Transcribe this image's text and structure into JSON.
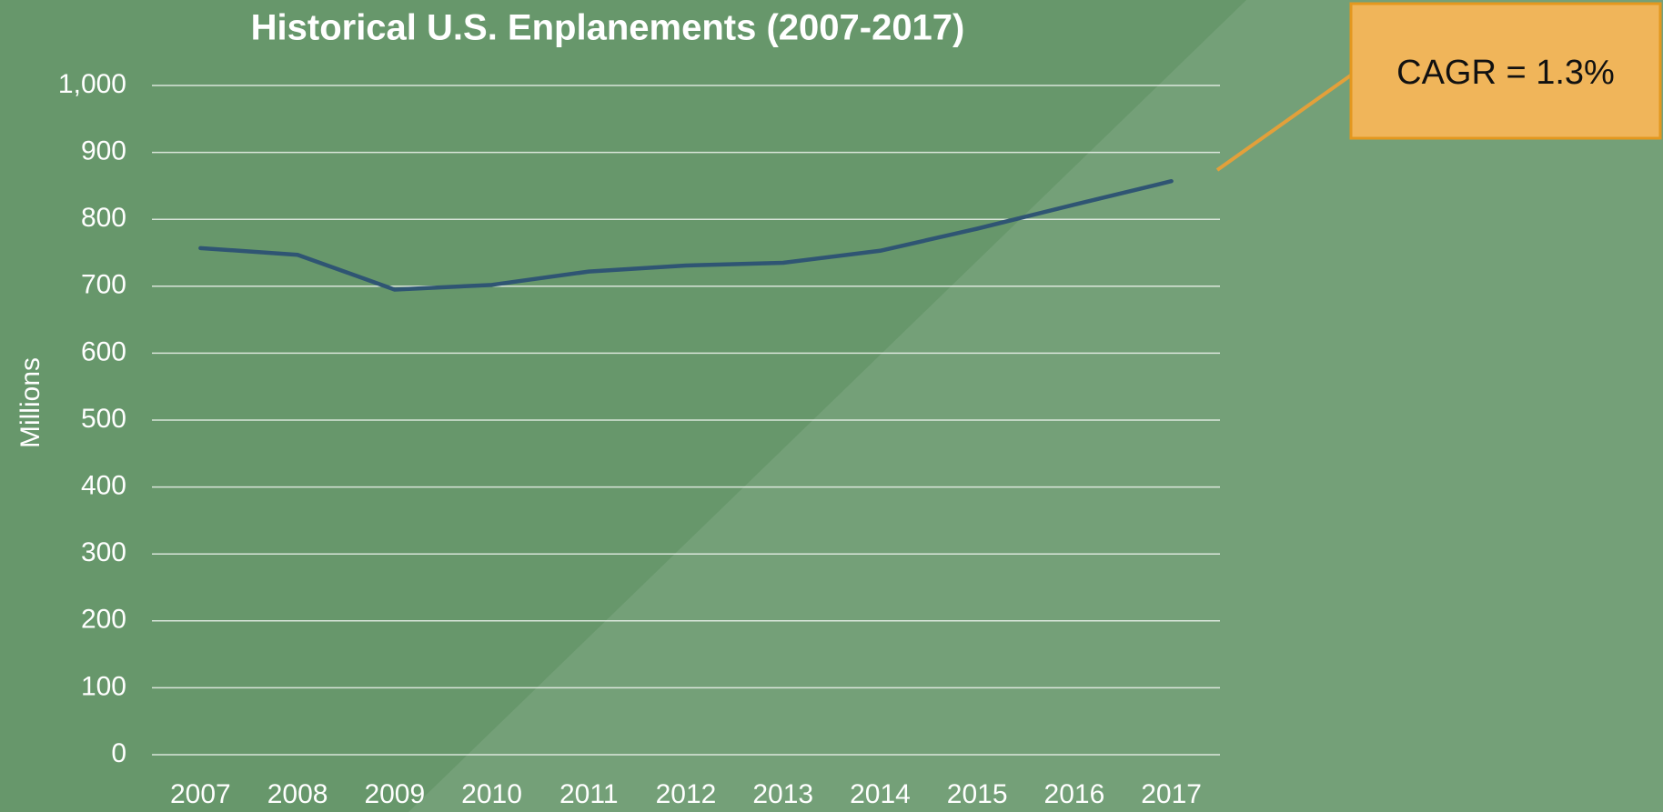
{
  "chart_data": {
    "type": "line",
    "title": "Historical U.S. Enplanements (2007-2017)",
    "y_label": "Millions",
    "categories": [
      "2007",
      "2008",
      "2009",
      "2010",
      "2011",
      "2012",
      "2013",
      "2014",
      "2015",
      "2016",
      "2017"
    ],
    "series": [
      {
        "name": "Enplanements",
        "color": "#2f5573",
        "values": [
          757,
          747,
          695,
          702,
          722,
          731,
          735,
          753,
          786,
          822,
          857
        ]
      }
    ],
    "ylim": [
      0,
      1000
    ],
    "yticks": [
      0,
      100,
      200,
      300,
      400,
      500,
      600,
      700,
      800,
      900,
      {
        "value": 1000,
        "label": "1,000"
      }
    ],
    "grid": true,
    "annotation": "CAGR = 1.3%"
  }
}
